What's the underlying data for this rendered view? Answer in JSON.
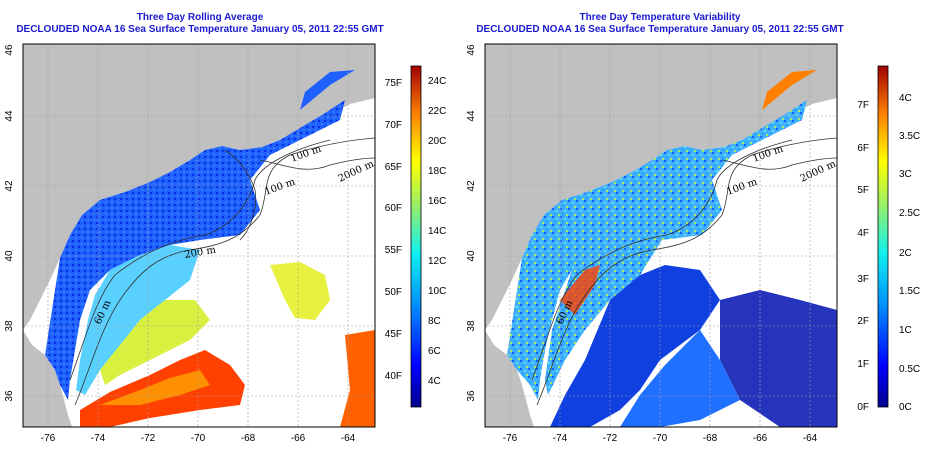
{
  "panels": [
    {
      "title_line1": "Three Day Rolling Average",
      "title_line2": "DECLOUDED NOAA 16 Sea Surface Temperature January 05, 2011 22:55 GMT",
      "colorbar_f_labels": [
        "75F",
        "70F",
        "65F",
        "60F",
        "55F",
        "50F",
        "45F",
        "40F"
      ],
      "colorbar_c_labels": [
        "24C",
        "22C",
        "20C",
        "18C",
        "16C",
        "14C",
        "12C",
        "10C",
        "8C",
        "6C",
        "4C"
      ]
    },
    {
      "title_line1": "Three Day Temperature Variability",
      "title_line2": "DECLOUDED NOAA 16 Sea Surface Temperature January 05, 2011 22:55 GMT",
      "colorbar_f_labels": [
        "7F",
        "6F",
        "5F",
        "4F",
        "3F",
        "2F",
        "1F",
        "0F"
      ],
      "colorbar_c_labels": [
        "4C",
        "3.5C",
        "3C",
        "2.5C",
        "2C",
        "1.5C",
        "1C",
        "0.5C",
        "0C"
      ]
    }
  ],
  "axes": {
    "lon_labels": [
      "-76",
      "-74",
      "-72",
      "-70",
      "-68",
      "-66",
      "-64"
    ],
    "lat_labels": [
      "46",
      "44",
      "42",
      "40",
      "38",
      "36"
    ]
  },
  "contour_labels": {
    "depth_100": "100 m",
    "depth_2000": "2000 m",
    "depth_200": "200 m",
    "depth_60": "60 m"
  }
}
